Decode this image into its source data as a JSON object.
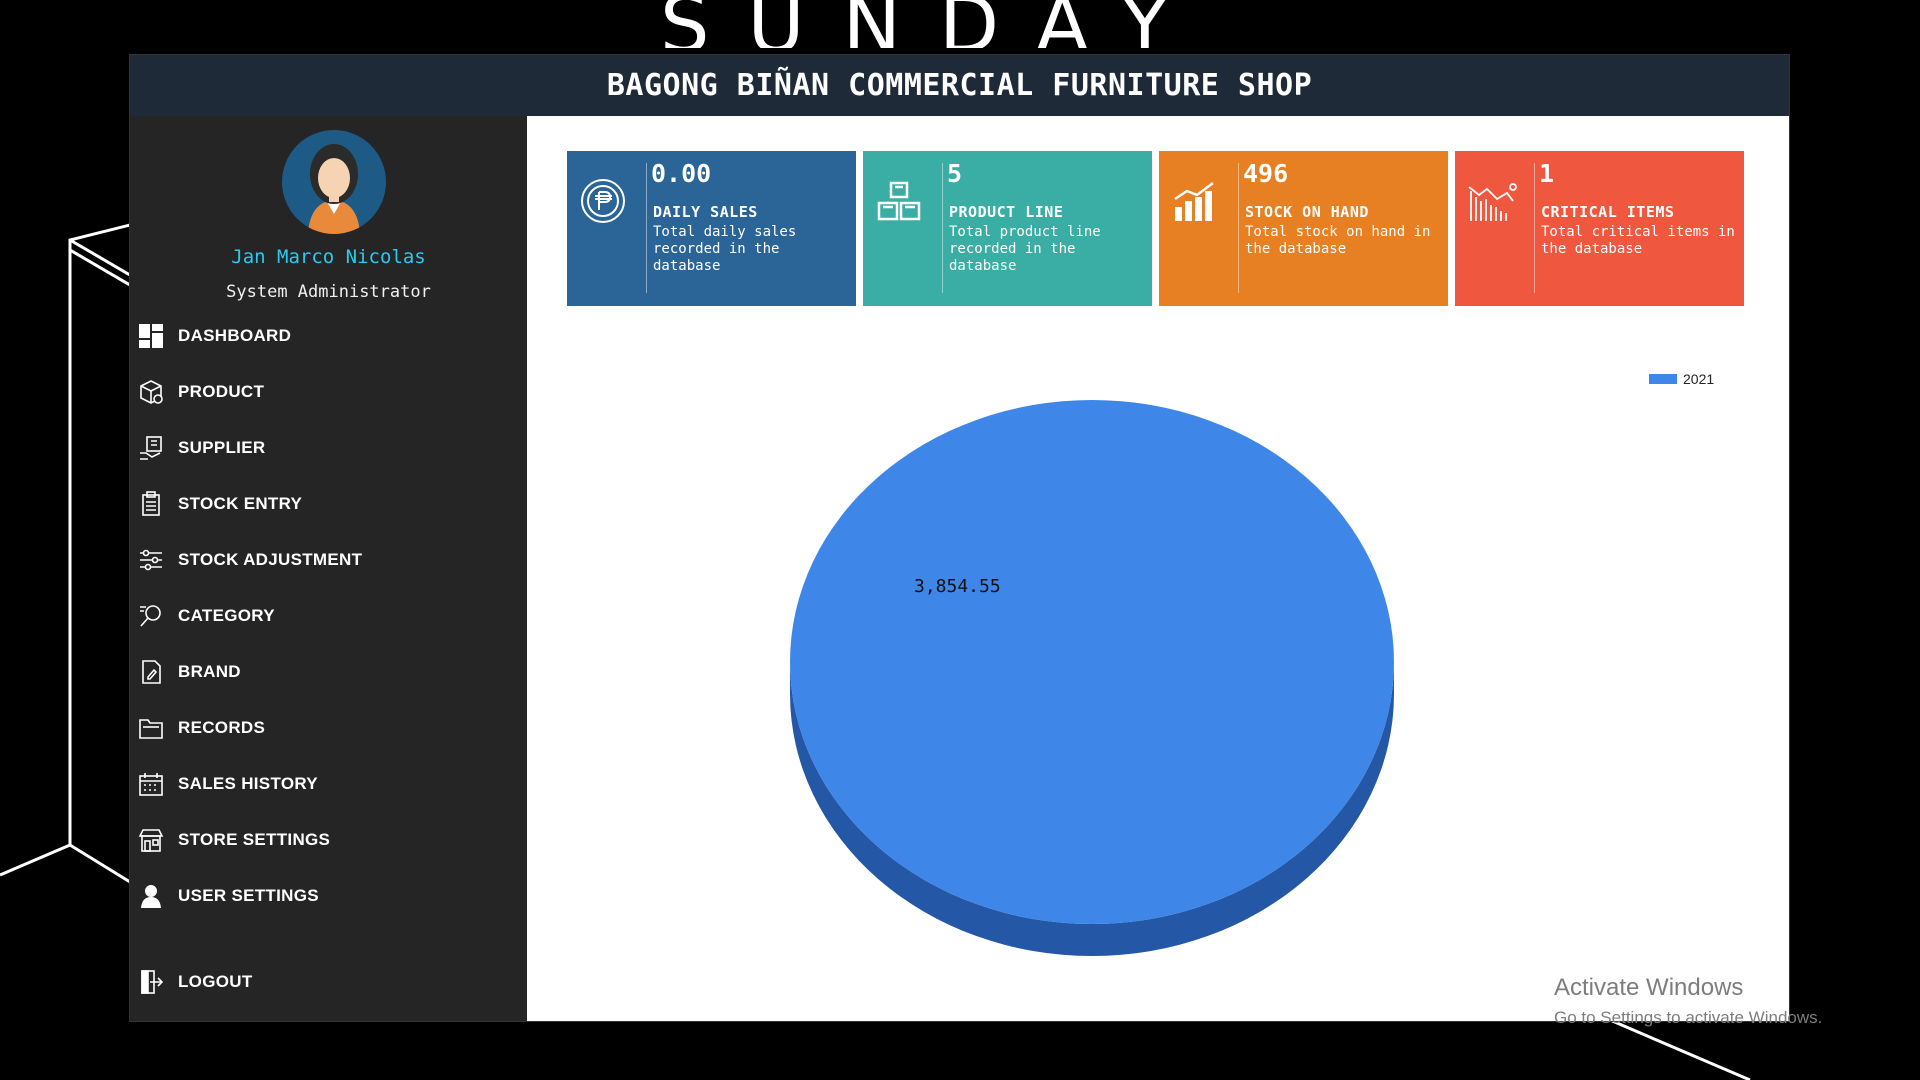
{
  "brand": {
    "title": "SUNDAY"
  },
  "window": {
    "title": "BAGONG BIÑAN COMMERCIAL FURNITURE SHOP"
  },
  "user": {
    "name": "Jan Marco Nicolas",
    "role": "System Administrator"
  },
  "nav": [
    {
      "label": "DASHBOARD",
      "icon": "dashboard-icon"
    },
    {
      "label": "PRODUCT",
      "icon": "product-box-icon"
    },
    {
      "label": "SUPPLIER",
      "icon": "supplier-icon"
    },
    {
      "label": "STOCK ENTRY",
      "icon": "clipboard-icon"
    },
    {
      "label": "STOCK ADJUSTMENT",
      "icon": "sliders-icon"
    },
    {
      "label": "CATEGORY",
      "icon": "category-search-icon"
    },
    {
      "label": "BRAND",
      "icon": "brand-document-icon"
    },
    {
      "label": "RECORDS",
      "icon": "records-folder-icon"
    },
    {
      "label": "SALES HISTORY",
      "icon": "calendar-icon"
    },
    {
      "label": "STORE SETTINGS",
      "icon": "store-icon"
    },
    {
      "label": "USER SETTINGS",
      "icon": "user-icon"
    },
    {
      "label": "LOGOUT",
      "icon": "logout-icon"
    }
  ],
  "cards": [
    {
      "value": "0.00",
      "title": "DAILY SALES",
      "desc": "Total daily sales recorded in the database",
      "color": "#2b6496",
      "icon": "peso-coin-icon"
    },
    {
      "value": "5",
      "title": "PRODUCT LINE",
      "desc": "Total product line recorded in the database",
      "color": "#3aaea4",
      "icon": "boxes-icon"
    },
    {
      "value": "496",
      "title": "STOCK ON HAND",
      "desc": "Total stock on hand in the database",
      "color": "#e78022",
      "icon": "bar-chart-icon"
    },
    {
      "value": "1",
      "title": "CRITICAL ITEMS",
      "desc": "Total critical items in the database",
      "color": "#ef573e",
      "icon": "declining-chart-icon"
    }
  ],
  "chart_data": {
    "type": "pie",
    "series": [
      {
        "name": "2021",
        "values": [
          3854.55
        ]
      }
    ],
    "labels": [
      "3,854.55"
    ],
    "legend_position": "top-right",
    "colors": [
      "#3e86e8"
    ]
  },
  "watermark": {
    "line1": "Activate Windows",
    "line2": "Go to Settings to activate Windows."
  }
}
